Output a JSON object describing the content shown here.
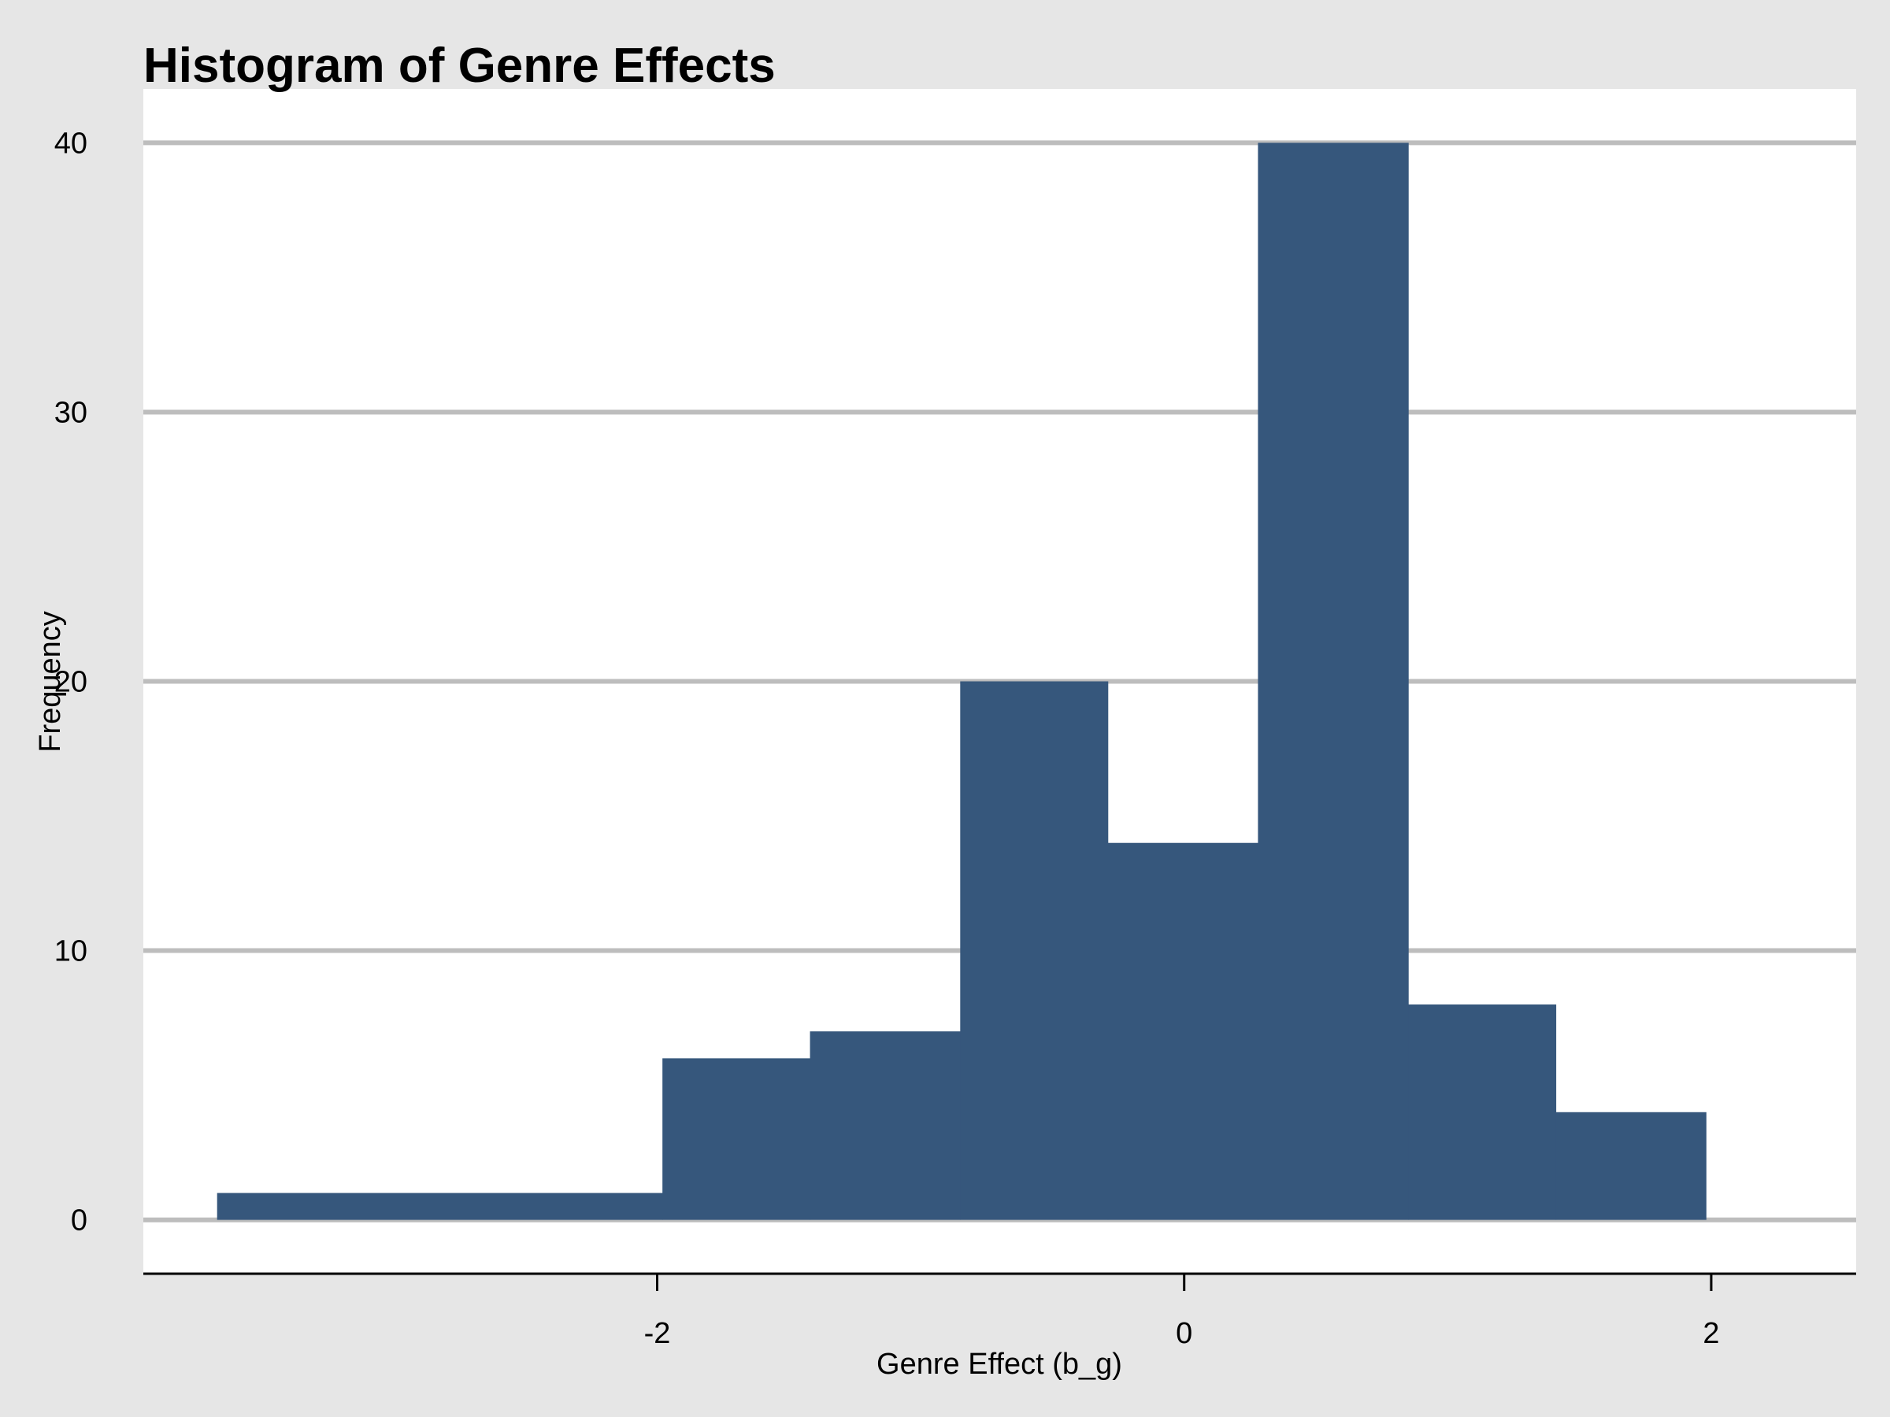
{
  "chart_data": {
    "type": "bar",
    "title": "Histogram of Genre Effects",
    "xlabel": "Genre Effect (b_g)",
    "ylabel": "Frequency",
    "xlim": [
      -3.95,
      2.55
    ],
    "ylim": [
      -2,
      42
    ],
    "x_ticks": [
      -2,
      0,
      2
    ],
    "y_ticks": [
      0,
      10,
      20,
      30,
      40
    ],
    "grid": true,
    "bar_color": "#36577c",
    "grid_color": "#bdbdbd",
    "plot_background": "#ffffff",
    "page_background": "#e6e6e6",
    "bins": [
      {
        "x0": -3.67,
        "x1": -1.98,
        "value": 1
      },
      {
        "x0": -1.98,
        "x1": -1.42,
        "value": 6
      },
      {
        "x0": -1.42,
        "x1": -0.85,
        "value": 7
      },
      {
        "x0": -0.85,
        "x1": -0.29,
        "value": 20
      },
      {
        "x0": -0.29,
        "x1": 0.28,
        "value": 14
      },
      {
        "x0": 0.28,
        "x1": 0.85,
        "value": 40
      },
      {
        "x0": 0.85,
        "x1": 1.41,
        "value": 8
      },
      {
        "x0": 1.41,
        "x1": 1.98,
        "value": 4
      }
    ]
  }
}
